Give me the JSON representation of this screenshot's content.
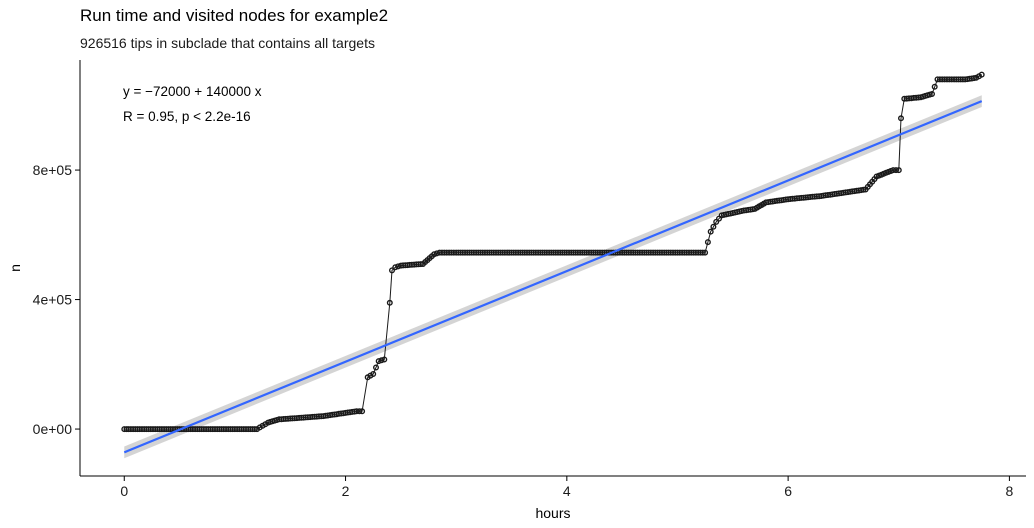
{
  "title": "Run time and visited nodes for example2",
  "subtitle": "926516 tips in subclade that contains all targets",
  "chart_data": {
    "type": "scatter",
    "title": "Run time and visited nodes for example2",
    "subtitle": "926516 tips in subclade that contains all targets",
    "xlabel": "hours",
    "ylabel": "n",
    "xlim": [
      -0.4,
      8.15
    ],
    "ylim": [
      -145000,
      1140000
    ],
    "x_ticks": [
      0,
      2,
      4,
      6,
      8
    ],
    "x_tick_labels": [
      "0",
      "2",
      "4",
      "6",
      "8"
    ],
    "y_ticks": [
      0,
      400000,
      800000
    ],
    "y_tick_labels": [
      "0e+00",
      "4e+05",
      "8e+05"
    ],
    "grid": false,
    "annotations": {
      "equation": "y = −72000 + 140000 x",
      "correlation": "R = 0.95, p < 2.2e-16"
    },
    "regression": {
      "intercept": -72000,
      "slope": 140000,
      "color": "#3366FF",
      "se_band_color": "#cccccc"
    },
    "series": [
      {
        "points_color": "#1a1a1a",
        "x": [
          0.0,
          0.5,
          1.0,
          1.2,
          1.25,
          1.3,
          1.4,
          1.6,
          1.8,
          2.0,
          2.1,
          2.15,
          2.2,
          2.25,
          2.3,
          2.35,
          2.4,
          2.42,
          2.45,
          2.5,
          2.7,
          2.8,
          2.85,
          3.0,
          3.5,
          4.0,
          4.5,
          5.0,
          5.25,
          5.3,
          5.35,
          5.4,
          5.6,
          5.7,
          5.8,
          6.0,
          6.3,
          6.5,
          6.7,
          6.8,
          6.95,
          7.0,
          7.02,
          7.05,
          7.2,
          7.3,
          7.35,
          7.5,
          7.6,
          7.7,
          7.75
        ],
        "y": [
          0,
          0,
          0,
          0,
          10000,
          20000,
          30000,
          35000,
          40000,
          50000,
          55000,
          55000,
          160000,
          170000,
          210000,
          215000,
          390000,
          490000,
          500000,
          505000,
          510000,
          540000,
          545000,
          545000,
          545000,
          545000,
          545000,
          545000,
          545000,
          610000,
          640000,
          660000,
          675000,
          680000,
          700000,
          710000,
          720000,
          730000,
          740000,
          780000,
          800000,
          800000,
          960000,
          1020000,
          1025000,
          1035000,
          1080000,
          1080000,
          1080000,
          1085000,
          1095000
        ]
      }
    ]
  }
}
